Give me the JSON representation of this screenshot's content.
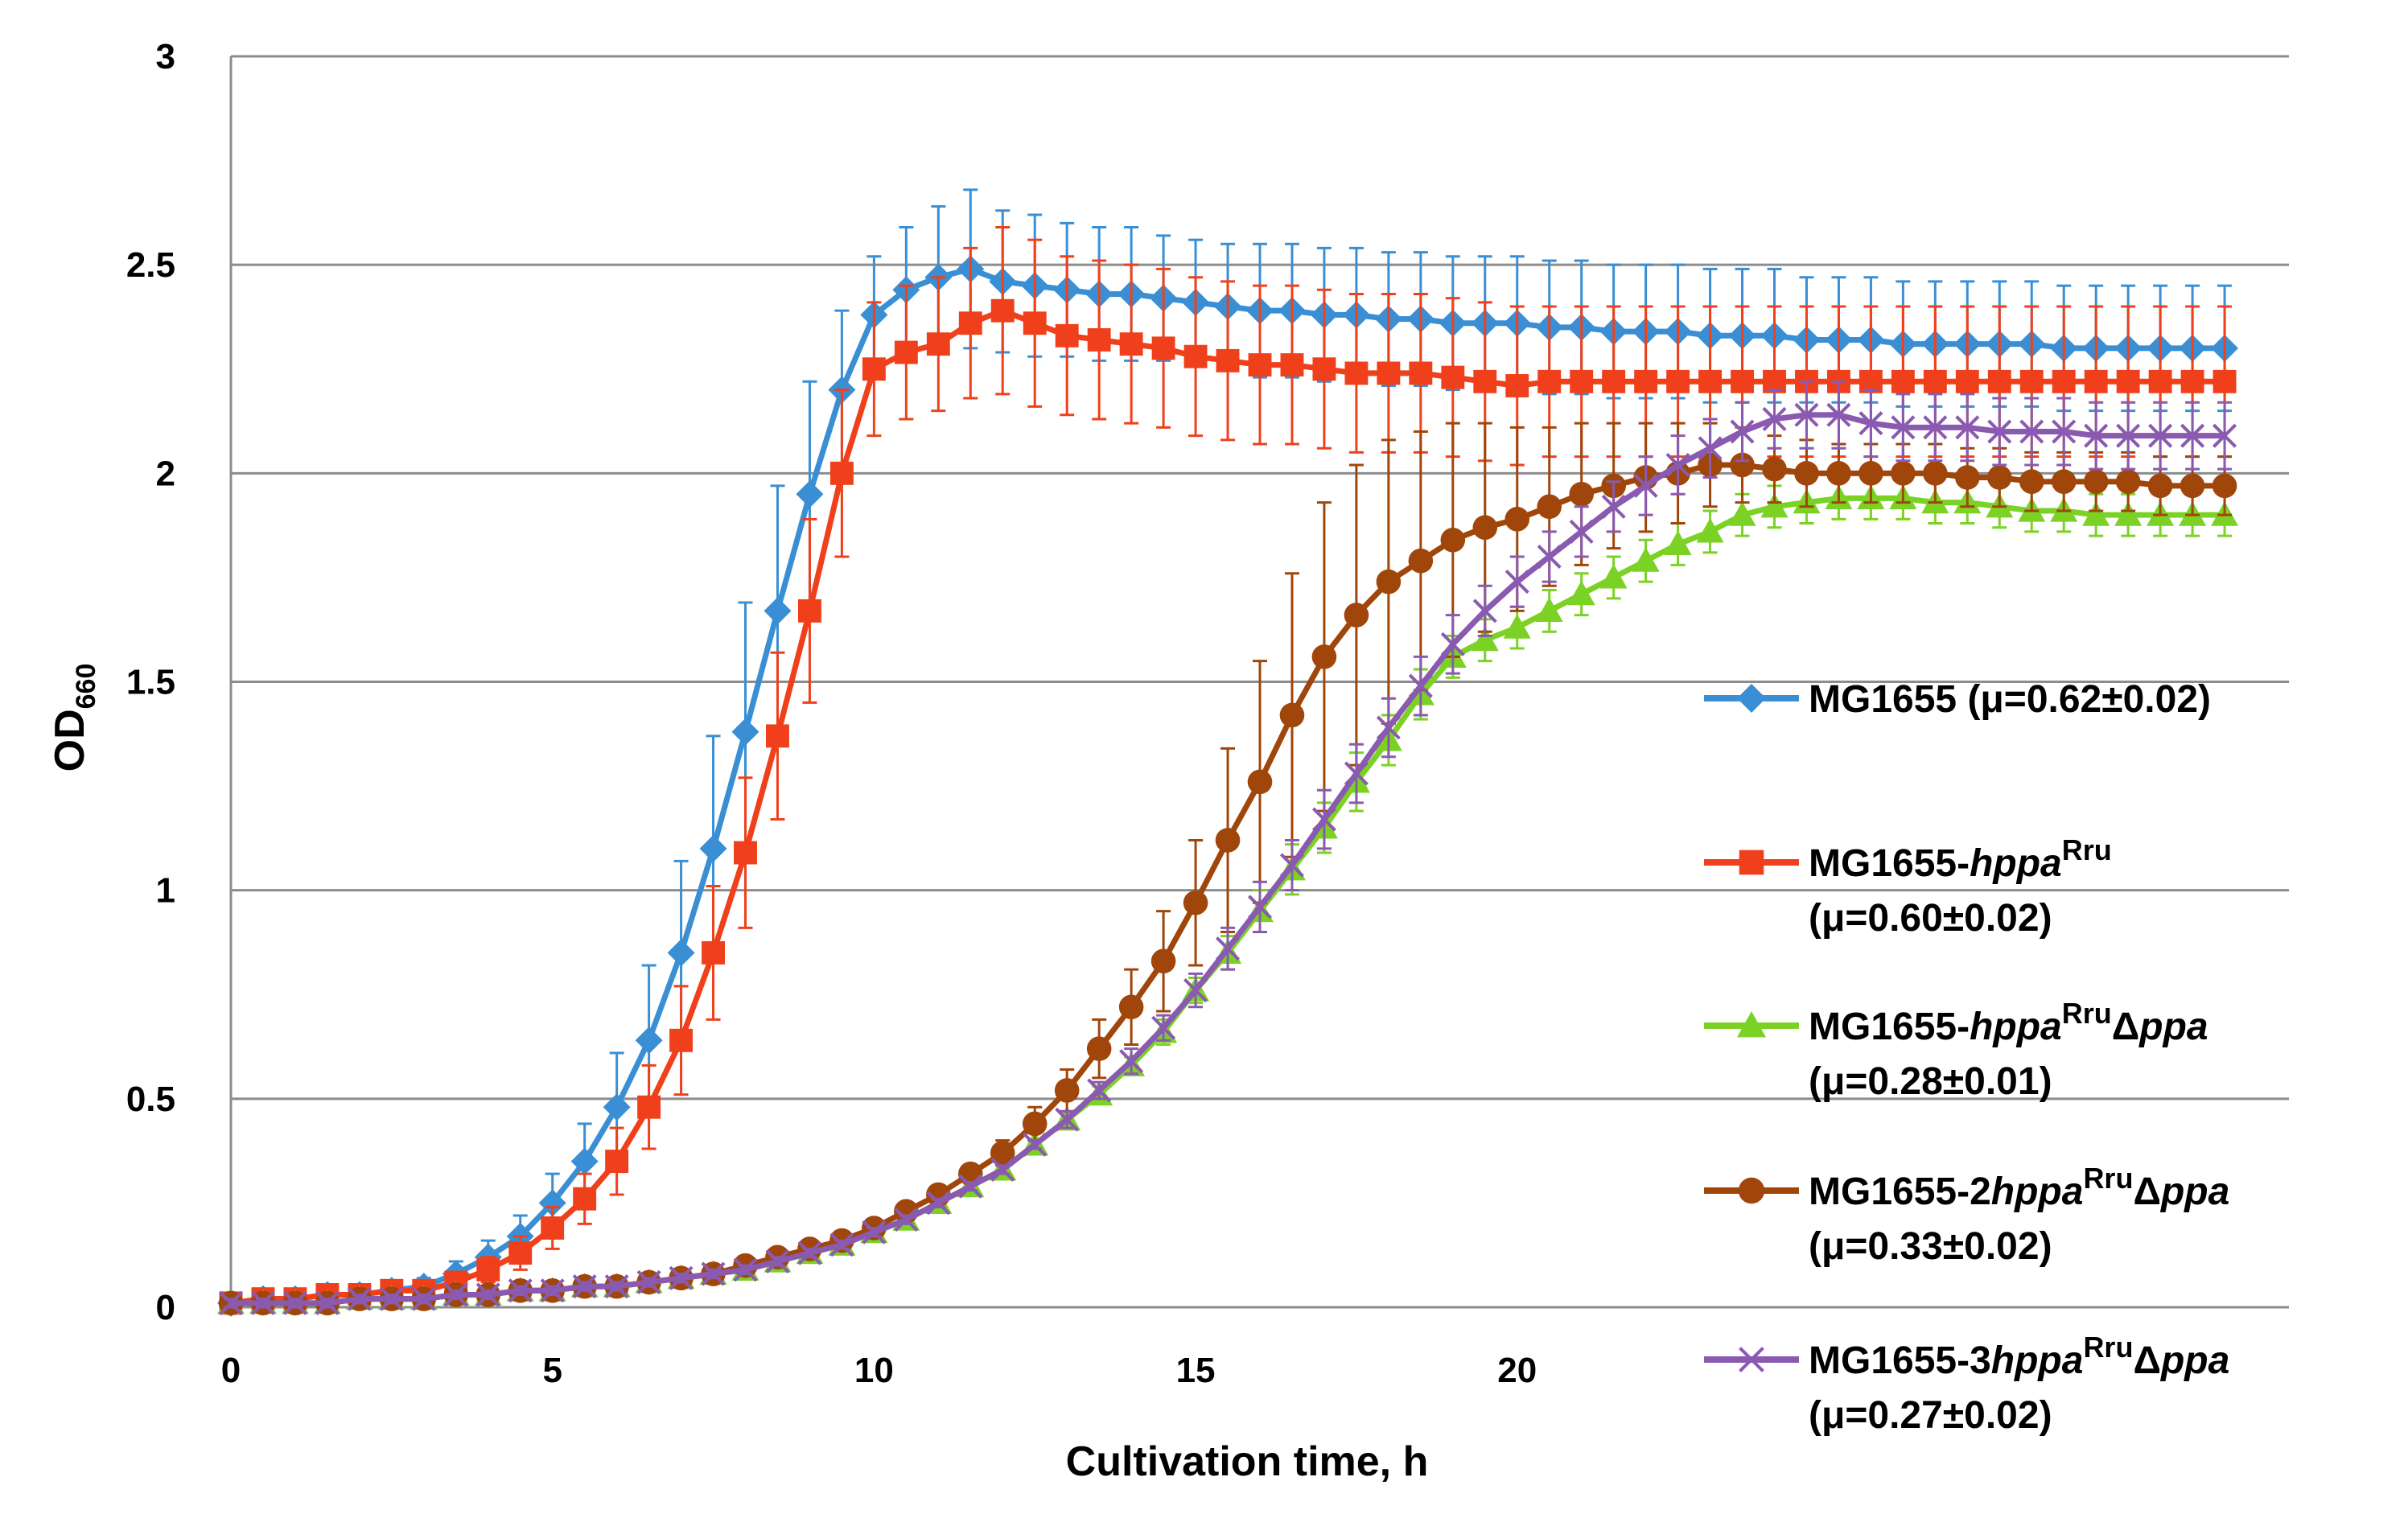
{
  "chart_data": {
    "type": "line",
    "title": "",
    "xlabel": "Cultivation time, h",
    "ylabel": {
      "main": "OD",
      "sub": "660"
    },
    "xlim": [
      0,
      32
    ],
    "ylim": [
      0,
      3
    ],
    "xticks": [
      0,
      5,
      10,
      15,
      20
    ],
    "yticks": [
      0,
      0.5,
      1,
      1.5,
      2,
      2.5,
      3
    ],
    "ytick_labels": [
      "0",
      "0.5",
      "1",
      "1.5",
      "2",
      "2.5",
      "3"
    ],
    "grid": "horizontal",
    "legend_position": "right",
    "x": [
      0,
      0.5,
      1,
      1.5,
      2,
      2.5,
      3,
      3.5,
      4,
      4.5,
      5,
      5.5,
      6,
      6.5,
      7,
      7.5,
      8,
      8.5,
      9,
      9.5,
      10,
      10.5,
      11,
      11.5,
      12,
      12.5,
      13,
      13.5,
      14,
      14.5,
      15,
      15.5,
      16,
      16.5,
      17,
      17.5,
      18,
      18.5,
      19,
      19.5,
      20,
      20.5,
      21,
      21.5,
      22,
      22.5,
      23,
      23.5,
      24,
      24.5,
      25,
      25.5,
      26,
      26.5,
      27,
      27.5,
      28,
      28.5,
      29,
      29.5,
      30,
      30.5,
      31
    ],
    "series": [
      {
        "name": "MG1655 (μ=0.62±0.02)",
        "legend": {
          "l1": [
            {
              "t": "MG1655 (μ=0.62±0.02)",
              "i": false
            }
          ],
          "l2": []
        },
        "color": "#3a8fd4",
        "marker": "diamond",
        "values": [
          0.01,
          0.02,
          0.02,
          0.03,
          0.03,
          0.04,
          0.05,
          0.08,
          0.12,
          0.17,
          0.25,
          0.35,
          0.48,
          0.64,
          0.85,
          1.1,
          1.38,
          1.67,
          1.95,
          2.2,
          2.38,
          2.44,
          2.47,
          2.49,
          2.46,
          2.45,
          2.44,
          2.43,
          2.43,
          2.42,
          2.41,
          2.4,
          2.39,
          2.39,
          2.38,
          2.38,
          2.37,
          2.37,
          2.36,
          2.36,
          2.36,
          2.35,
          2.35,
          2.34,
          2.34,
          2.34,
          2.33,
          2.33,
          2.33,
          2.32,
          2.32,
          2.32,
          2.31,
          2.31,
          2.31,
          2.31,
          2.31,
          2.3,
          2.3,
          2.3,
          2.3,
          2.3,
          2.3
        ],
        "errors": [
          0.01,
          0.01,
          0.01,
          0.01,
          0.01,
          0.01,
          0.02,
          0.03,
          0.04,
          0.05,
          0.07,
          0.09,
          0.13,
          0.18,
          0.22,
          0.27,
          0.31,
          0.3,
          0.27,
          0.19,
          0.14,
          0.15,
          0.17,
          0.19,
          0.17,
          0.17,
          0.16,
          0.16,
          0.16,
          0.15,
          0.15,
          0.15,
          0.16,
          0.16,
          0.16,
          0.16,
          0.16,
          0.16,
          0.16,
          0.16,
          0.16,
          0.16,
          0.16,
          0.16,
          0.16,
          0.16,
          0.16,
          0.16,
          0.16,
          0.15,
          0.15,
          0.15,
          0.15,
          0.15,
          0.15,
          0.15,
          0.15,
          0.15,
          0.15,
          0.15,
          0.15,
          0.15,
          0.15
        ]
      },
      {
        "name": "MG1655-hppaRru (μ=0.60±0.02)",
        "legend": {
          "l1": [
            {
              "t": "MG1655-",
              "i": false
            },
            {
              "t": "hppa",
              "i": true
            },
            {
              "t": "Rru",
              "i": false,
              "sup": true
            }
          ],
          "l2": [
            {
              "t": "(μ=0.60±0.02)",
              "i": false
            }
          ]
        },
        "color": "#f0401b",
        "marker": "square",
        "values": [
          0.01,
          0.02,
          0.02,
          0.03,
          0.03,
          0.04,
          0.04,
          0.06,
          0.09,
          0.13,
          0.19,
          0.26,
          0.35,
          0.48,
          0.64,
          0.85,
          1.09,
          1.37,
          1.67,
          2.0,
          2.25,
          2.29,
          2.31,
          2.36,
          2.39,
          2.36,
          2.33,
          2.32,
          2.31,
          2.3,
          2.28,
          2.27,
          2.26,
          2.26,
          2.25,
          2.24,
          2.24,
          2.24,
          2.23,
          2.22,
          2.21,
          2.22,
          2.22,
          2.22,
          2.22,
          2.22,
          2.22,
          2.22,
          2.22,
          2.22,
          2.22,
          2.22,
          2.22,
          2.22,
          2.22,
          2.22,
          2.22,
          2.22,
          2.22,
          2.22,
          2.22,
          2.22,
          2.22
        ],
        "errors": [
          0.01,
          0.01,
          0.01,
          0.01,
          0.01,
          0.01,
          0.01,
          0.02,
          0.03,
          0.04,
          0.05,
          0.06,
          0.08,
          0.1,
          0.13,
          0.16,
          0.18,
          0.2,
          0.22,
          0.2,
          0.16,
          0.16,
          0.16,
          0.18,
          0.2,
          0.2,
          0.19,
          0.19,
          0.19,
          0.19,
          0.19,
          0.19,
          0.19,
          0.19,
          0.19,
          0.19,
          0.19,
          0.19,
          0.19,
          0.19,
          0.19,
          0.18,
          0.18,
          0.18,
          0.18,
          0.18,
          0.18,
          0.18,
          0.18,
          0.18,
          0.18,
          0.18,
          0.18,
          0.18,
          0.18,
          0.18,
          0.18,
          0.18,
          0.18,
          0.18,
          0.18,
          0.18,
          0.18
        ]
      },
      {
        "name": "MG1655-hppaRruΔppa (μ=0.28±0.01)",
        "legend": {
          "l1": [
            {
              "t": "MG1655-",
              "i": false
            },
            {
              "t": "hppa",
              "i": true
            },
            {
              "t": "Rru",
              "i": false,
              "sup": true
            },
            {
              "t": "Δ",
              "i": false
            },
            {
              "t": "ppa",
              "i": true
            }
          ],
          "l2": [
            {
              "t": "(μ=0.28±0.01)",
              "i": false
            }
          ]
        },
        "color": "#7bd225",
        "marker": "triangle",
        "values": [
          0.01,
          0.01,
          0.01,
          0.01,
          0.02,
          0.02,
          0.02,
          0.03,
          0.03,
          0.04,
          0.04,
          0.05,
          0.05,
          0.06,
          0.07,
          0.08,
          0.09,
          0.11,
          0.13,
          0.15,
          0.18,
          0.21,
          0.25,
          0.29,
          0.33,
          0.39,
          0.45,
          0.51,
          0.58,
          0.66,
          0.76,
          0.85,
          0.95,
          1.05,
          1.15,
          1.26,
          1.36,
          1.47,
          1.56,
          1.6,
          1.63,
          1.67,
          1.71,
          1.75,
          1.79,
          1.83,
          1.86,
          1.9,
          1.92,
          1.93,
          1.94,
          1.94,
          1.94,
          1.93,
          1.93,
          1.92,
          1.91,
          1.91,
          1.9,
          1.9,
          1.9,
          1.9,
          1.9
        ],
        "errors": [
          0.01,
          0.01,
          0.01,
          0.01,
          0.01,
          0.01,
          0.01,
          0.01,
          0.01,
          0.01,
          0.01,
          0.01,
          0.01,
          0.01,
          0.01,
          0.01,
          0.01,
          0.01,
          0.01,
          0.01,
          0.01,
          0.01,
          0.01,
          0.01,
          0.01,
          0.01,
          0.02,
          0.02,
          0.02,
          0.03,
          0.03,
          0.04,
          0.05,
          0.06,
          0.06,
          0.07,
          0.06,
          0.06,
          0.05,
          0.05,
          0.05,
          0.05,
          0.05,
          0.05,
          0.05,
          0.05,
          0.05,
          0.05,
          0.05,
          0.05,
          0.05,
          0.05,
          0.05,
          0.05,
          0.05,
          0.05,
          0.05,
          0.05,
          0.05,
          0.05,
          0.05,
          0.05,
          0.05
        ]
      },
      {
        "name": "MG1655-2hppaRruΔppa (μ=0.33±0.02)",
        "legend": {
          "l1": [
            {
              "t": "MG1655-2",
              "i": false
            },
            {
              "t": "hppa",
              "i": true
            },
            {
              "t": "Rru",
              "i": false,
              "sup": true
            },
            {
              "t": "Δ",
              "i": false
            },
            {
              "t": "ppa",
              "i": true
            }
          ],
          "l2": [
            {
              "t": "(μ=0.33±0.02)",
              "i": false
            }
          ]
        },
        "color": "#a0460a",
        "marker": "circle",
        "values": [
          0.01,
          0.01,
          0.01,
          0.01,
          0.02,
          0.02,
          0.02,
          0.03,
          0.03,
          0.04,
          0.04,
          0.05,
          0.05,
          0.06,
          0.07,
          0.08,
          0.1,
          0.12,
          0.14,
          0.16,
          0.19,
          0.23,
          0.27,
          0.32,
          0.37,
          0.44,
          0.52,
          0.62,
          0.72,
          0.83,
          0.97,
          1.12,
          1.26,
          1.42,
          1.56,
          1.66,
          1.74,
          1.79,
          1.84,
          1.87,
          1.89,
          1.92,
          1.95,
          1.97,
          1.99,
          2.0,
          2.02,
          2.02,
          2.01,
          2.0,
          2.0,
          2.0,
          2.0,
          2.0,
          1.99,
          1.99,
          1.98,
          1.98,
          1.98,
          1.98,
          1.97,
          1.97,
          1.97
        ],
        "errors": [
          0.01,
          0.01,
          0.01,
          0.01,
          0.01,
          0.01,
          0.01,
          0.01,
          0.01,
          0.01,
          0.01,
          0.01,
          0.01,
          0.01,
          0.01,
          0.01,
          0.01,
          0.01,
          0.01,
          0.01,
          0.01,
          0.01,
          0.01,
          0.02,
          0.03,
          0.04,
          0.05,
          0.07,
          0.09,
          0.12,
          0.15,
          0.22,
          0.29,
          0.34,
          0.37,
          0.36,
          0.34,
          0.31,
          0.28,
          0.25,
          0.22,
          0.19,
          0.17,
          0.15,
          0.13,
          0.12,
          0.1,
          0.09,
          0.08,
          0.08,
          0.07,
          0.07,
          0.07,
          0.07,
          0.07,
          0.07,
          0.07,
          0.07,
          0.07,
          0.07,
          0.07,
          0.07,
          0.07
        ]
      },
      {
        "name": "MG1655-3hppaRruΔppa (μ=0.27±0.02)",
        "legend": {
          "l1": [
            {
              "t": "MG1655-3",
              "i": false
            },
            {
              "t": "hppa",
              "i": true
            },
            {
              "t": "Rru",
              "i": false,
              "sup": true
            },
            {
              "t": "Δ",
              "i": false
            },
            {
              "t": "ppa",
              "i": true
            }
          ],
          "l2": [
            {
              "t": "(μ=0.27±0.02)",
              "i": false
            }
          ]
        },
        "color": "#8a5ab0",
        "marker": "x",
        "values": [
          0.01,
          0.01,
          0.01,
          0.01,
          0.02,
          0.02,
          0.02,
          0.03,
          0.03,
          0.04,
          0.04,
          0.05,
          0.05,
          0.06,
          0.07,
          0.08,
          0.09,
          0.11,
          0.13,
          0.15,
          0.18,
          0.21,
          0.25,
          0.29,
          0.33,
          0.39,
          0.45,
          0.52,
          0.59,
          0.67,
          0.76,
          0.86,
          0.96,
          1.06,
          1.17,
          1.28,
          1.39,
          1.49,
          1.59,
          1.67,
          1.74,
          1.8,
          1.86,
          1.92,
          1.97,
          2.02,
          2.06,
          2.1,
          2.13,
          2.14,
          2.14,
          2.12,
          2.11,
          2.11,
          2.11,
          2.1,
          2.1,
          2.1,
          2.09,
          2.09,
          2.09,
          2.09,
          2.09
        ],
        "errors": [
          0.01,
          0.01,
          0.01,
          0.01,
          0.01,
          0.01,
          0.01,
          0.01,
          0.01,
          0.01,
          0.01,
          0.01,
          0.01,
          0.01,
          0.01,
          0.01,
          0.01,
          0.01,
          0.01,
          0.01,
          0.01,
          0.01,
          0.01,
          0.01,
          0.01,
          0.01,
          0.02,
          0.02,
          0.03,
          0.03,
          0.04,
          0.05,
          0.06,
          0.06,
          0.07,
          0.07,
          0.07,
          0.07,
          0.07,
          0.06,
          0.06,
          0.06,
          0.06,
          0.06,
          0.07,
          0.07,
          0.07,
          0.07,
          0.07,
          0.08,
          0.08,
          0.08,
          0.08,
          0.08,
          0.08,
          0.08,
          0.08,
          0.08,
          0.08,
          0.08,
          0.08,
          0.08,
          0.08
        ]
      }
    ]
  }
}
